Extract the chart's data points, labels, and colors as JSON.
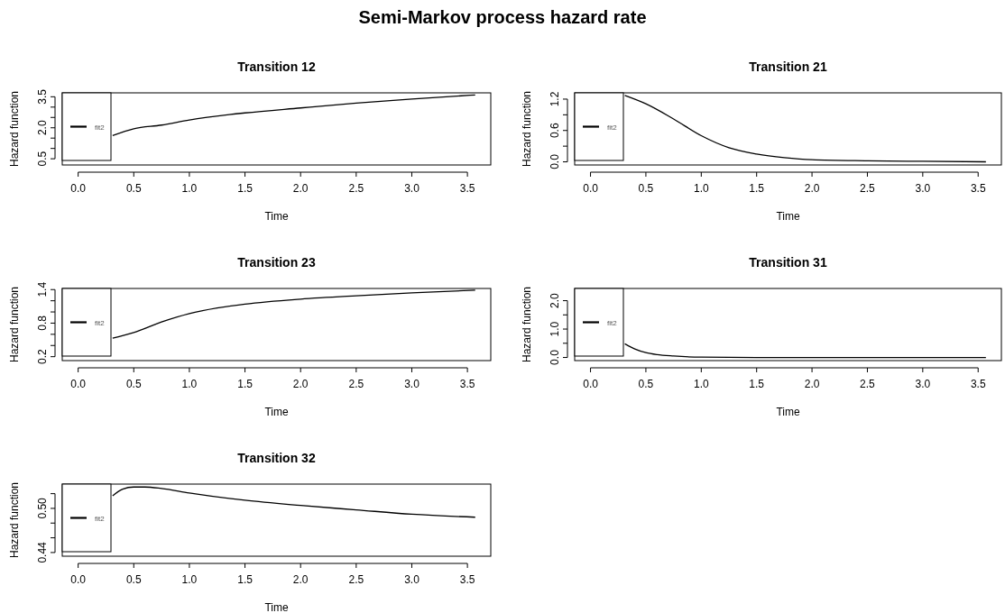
{
  "chart_data": [
    {
      "type": "other",
      "title": "Semi-Markov process hazard rate"
    },
    {
      "type": "line",
      "title": "Transition 12",
      "xlabel": "Time",
      "ylabel": "Hazard function",
      "legend": "left",
      "xlim": [
        -0.143,
        3.71
      ],
      "ylim": [
        0.2,
        3.69
      ],
      "xticks": [
        {
          "value": 0,
          "label": "0.0"
        },
        0.5,
        {
          "value": 1,
          "label": "1.0"
        },
        1.5,
        {
          "value": 2,
          "label": "2.0"
        },
        2.5,
        {
          "value": 3,
          "label": "3.0"
        },
        3.5
      ],
      "yticks": [
        0.5,
        {
          "value": 1,
          "label": null
        },
        {
          "value": 1.5,
          "label": null
        },
        {
          "value": 2,
          "label": "2.0"
        },
        {
          "value": 2.5,
          "label": null
        },
        {
          "value": 3,
          "label": null
        },
        3.5
      ],
      "x": [
        0.31,
        0.5,
        0.75,
        1,
        1.5,
        2,
        2.5,
        3,
        3.57
      ],
      "series": [
        {
          "name": "fit2",
          "color": "#000000",
          "values": [
            1.62,
            1.95,
            2.13,
            2.38,
            2.72,
            2.96,
            3.19,
            3.39,
            3.59
          ]
        }
      ]
    },
    {
      "type": "line",
      "title": "Transition 21",
      "xlabel": "Time",
      "ylabel": "Hazard function",
      "legend": "left",
      "xlim": [
        -0.143,
        3.71
      ],
      "ylim": [
        -0.06,
        1.32
      ],
      "xticks": [
        {
          "value": 0,
          "label": "0.0"
        },
        0.5,
        {
          "value": 1,
          "label": "1.0"
        },
        1.5,
        {
          "value": 2,
          "label": "2.0"
        },
        2.5,
        {
          "value": 3,
          "label": "3.0"
        },
        3.5
      ],
      "yticks": [
        {
          "value": 0,
          "label": "0.0"
        },
        {
          "value": 0.3,
          "label": null
        },
        0.6,
        {
          "value": 0.9,
          "label": null
        },
        1.2
      ],
      "x": [
        0.31,
        0.5,
        0.75,
        1,
        1.25,
        1.5,
        1.75,
        2,
        2.5,
        3,
        3.57
      ],
      "series": [
        {
          "name": "fit2",
          "color": "#000000",
          "values": [
            1.27,
            1.11,
            0.82,
            0.5,
            0.27,
            0.15,
            0.08,
            0.04,
            0.02,
            0.01,
            0
          ]
        }
      ]
    },
    {
      "type": "line",
      "title": "Transition 23",
      "xlabel": "Time",
      "ylabel": "Hazard function",
      "legend": "left",
      "xlim": [
        -0.143,
        3.71
      ],
      "ylim": [
        0.13,
        1.42
      ],
      "xticks": [
        {
          "value": 0,
          "label": "0.0"
        },
        0.5,
        {
          "value": 1,
          "label": "1.0"
        },
        1.5,
        {
          "value": 2,
          "label": "2.0"
        },
        2.5,
        {
          "value": 3,
          "label": "3.0"
        },
        3.5
      ],
      "yticks": [
        0.2,
        {
          "value": 0.4,
          "label": null
        },
        {
          "value": 0.6,
          "label": null
        },
        0.8,
        {
          "value": 1,
          "label": null
        },
        {
          "value": 1.2,
          "label": null
        },
        1.4
      ],
      "x": [
        0.31,
        0.5,
        0.75,
        1,
        1.25,
        1.5,
        2,
        2.5,
        3,
        3.57
      ],
      "series": [
        {
          "name": "fit2",
          "color": "#000000",
          "values": [
            0.53,
            0.63,
            0.82,
            0.97,
            1.07,
            1.14,
            1.23,
            1.29,
            1.34,
            1.39
          ]
        }
      ]
    },
    {
      "type": "line",
      "title": "Transition 31",
      "xlabel": "Time",
      "ylabel": "Hazard function",
      "legend": "left",
      "xlim": [
        -0.143,
        3.71
      ],
      "ylim": [
        -0.11,
        2.43
      ],
      "xticks": [
        {
          "value": 0,
          "label": "0.0"
        },
        0.5,
        {
          "value": 1,
          "label": "1.0"
        },
        1.5,
        {
          "value": 2,
          "label": "2.0"
        },
        2.5,
        {
          "value": 3,
          "label": "3.0"
        },
        3.5
      ],
      "yticks": [
        {
          "value": 0,
          "label": "0.0"
        },
        {
          "value": 0.5,
          "label": null
        },
        {
          "value": 1,
          "label": "1.0"
        },
        {
          "value": 1.5,
          "label": null
        },
        {
          "value": 2,
          "label": "2.0"
        }
      ],
      "x": [
        0.31,
        0.4,
        0.5,
        0.6,
        0.75,
        1,
        1.5,
        2,
        3,
        3.57
      ],
      "series": [
        {
          "name": "fit2",
          "color": "#000000",
          "values": [
            0.48,
            0.3,
            0.17,
            0.1,
            0.05,
            0.01,
            0,
            0,
            0,
            0
          ]
        }
      ]
    },
    {
      "type": "line",
      "title": "Transition 32",
      "xlabel": "Time",
      "ylabel": "Hazard function",
      "legend": "left",
      "xlim": [
        -0.143,
        3.71
      ],
      "ylim": [
        0.435,
        0.533
      ],
      "xticks": [
        {
          "value": 0,
          "label": "0.0"
        },
        0.5,
        {
          "value": 1,
          "label": "1.0"
        },
        1.5,
        {
          "value": 2,
          "label": "2.0"
        },
        2.5,
        {
          "value": 3,
          "label": "3.0"
        },
        3.5
      ],
      "yticks": [
        0.44,
        {
          "value": 0.46,
          "label": null
        },
        {
          "value": 0.48,
          "label": null
        },
        {
          "value": 0.5,
          "label": "0.50"
        },
        {
          "value": 0.52,
          "label": null
        }
      ],
      "x": [
        0.31,
        0.4,
        0.5,
        0.6,
        0.75,
        1,
        1.5,
        2,
        2.5,
        3,
        3.57
      ],
      "series": [
        {
          "name": "fit2",
          "color": "#000000",
          "values": [
            0.517,
            0.526,
            0.529,
            0.529,
            0.527,
            0.521,
            0.511,
            0.504,
            0.498,
            0.492,
            0.488
          ]
        }
      ]
    }
  ]
}
